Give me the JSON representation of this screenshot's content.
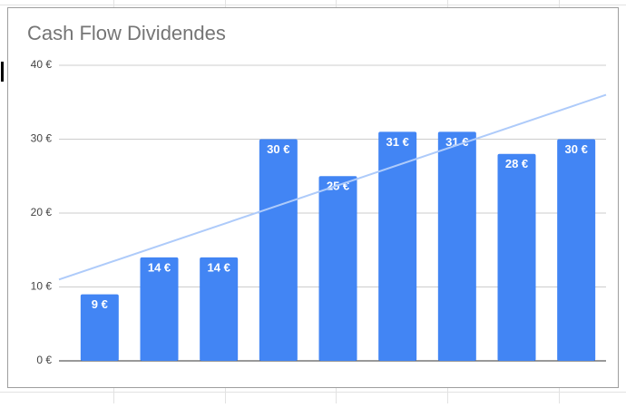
{
  "chart_data": {
    "type": "bar",
    "title": "Cash Flow Dividendes",
    "categories": [
      null,
      null,
      null,
      null,
      null,
      null,
      null,
      null,
      null
    ],
    "values": [
      9,
      14,
      14,
      30,
      25,
      31,
      31,
      28,
      30
    ],
    "value_labels": [
      "9 €",
      "14 €",
      "14 €",
      "30 €",
      "25 €",
      "31 €",
      "31 €",
      "28 €",
      "30 €"
    ],
    "color": "#4285f4",
    "trendline": {
      "values": [
        11,
        36
      ],
      "color": "#aecbfa"
    },
    "ylim": [
      0,
      40
    ],
    "yticks": [
      {
        "value": 0,
        "label": "0 €"
      },
      {
        "value": 10,
        "label": "10 €"
      },
      {
        "value": 20,
        "label": "20 €"
      },
      {
        "value": 30,
        "label": "30 €"
      },
      {
        "value": 40,
        "label": "40 €"
      }
    ],
    "grid": true
  }
}
